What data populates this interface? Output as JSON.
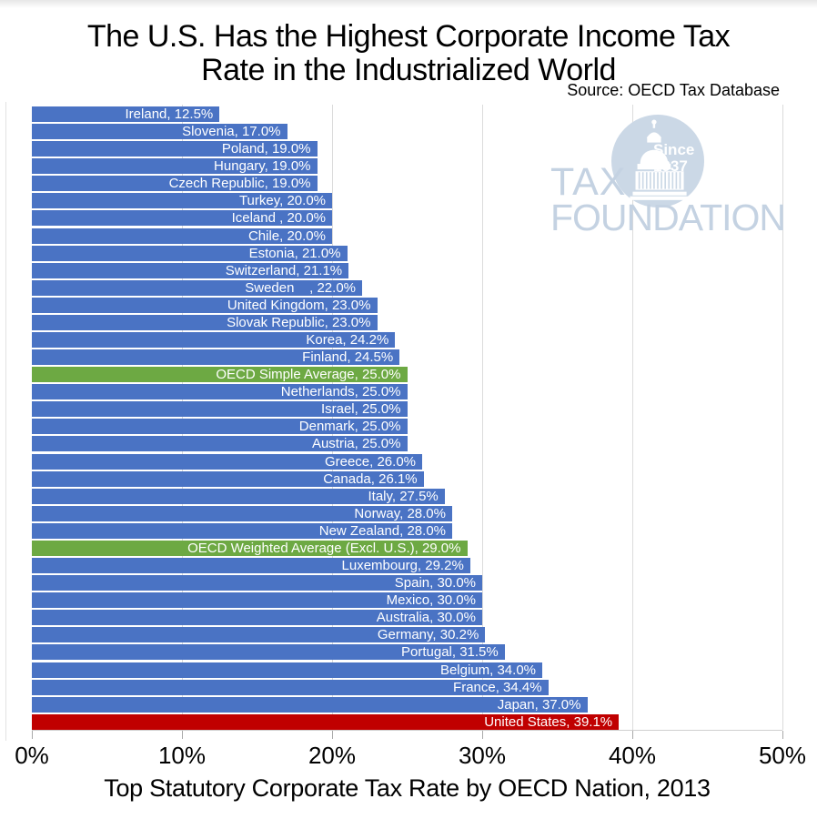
{
  "title": {
    "line1": "The U.S. Has the Highest Corporate Income Tax",
    "line2": "Rate in the Industrialized World"
  },
  "source": "Source: OECD Tax Database",
  "logo": {
    "tax": "TAX",
    "foundation": "FOUNDATION",
    "since": "Since",
    "year": "1937"
  },
  "colors": {
    "default": "#4A73C4",
    "average": "#6DA943",
    "us": "#C00000",
    "gridline": "#DBDBDB",
    "watermark_circle": "#CBD8E6",
    "watermark_text": "#C4D2E2"
  },
  "chart_data": {
    "type": "bar",
    "orientation": "horizontal",
    "title": "The U.S. Has the Highest Corporate Income Tax Rate in the Industrialized World",
    "xlabel": "Top Statutory Corporate Tax Rate by OECD Nation, 2013",
    "xlim": [
      0,
      50
    ],
    "x_ticks": [
      "0%",
      "10%",
      "20%",
      "30%",
      "40%",
      "50%"
    ],
    "grid": "vertical",
    "legend": "none",
    "items": [
      {
        "name": "Ireland",
        "value": 12.5,
        "kind": "default",
        "label": "Ireland, 12.5%"
      },
      {
        "name": "Slovenia",
        "value": 17.0,
        "kind": "default",
        "label": "Slovenia, 17.0%"
      },
      {
        "name": "Poland",
        "value": 19.0,
        "kind": "default",
        "label": "Poland, 19.0%"
      },
      {
        "name": "Hungary",
        "value": 19.0,
        "kind": "default",
        "label": "Hungary, 19.0%"
      },
      {
        "name": "Czech Republic",
        "value": 19.0,
        "kind": "default",
        "label": "Czech Republic, 19.0%"
      },
      {
        "name": "Turkey",
        "value": 20.0,
        "kind": "default",
        "label": "Turkey, 20.0%"
      },
      {
        "name": "Iceland",
        "value": 20.0,
        "kind": "default",
        "label": "Iceland , 20.0%"
      },
      {
        "name": "Chile",
        "value": 20.0,
        "kind": "default",
        "label": "Chile, 20.0%"
      },
      {
        "name": "Estonia",
        "value": 21.0,
        "kind": "default",
        "label": "Estonia, 21.0%"
      },
      {
        "name": "Switzerland",
        "value": 21.1,
        "kind": "default",
        "label": "Switzerland, 21.1%"
      },
      {
        "name": "Sweden",
        "value": 22.0,
        "kind": "default",
        "label": "Sweden    , 22.0%"
      },
      {
        "name": "United Kingdom",
        "value": 23.0,
        "kind": "default",
        "label": "United Kingdom, 23.0%"
      },
      {
        "name": "Slovak Republic",
        "value": 23.0,
        "kind": "default",
        "label": "Slovak Republic, 23.0%"
      },
      {
        "name": "Korea",
        "value": 24.2,
        "kind": "default",
        "label": "Korea, 24.2%"
      },
      {
        "name": "Finland",
        "value": 24.5,
        "kind": "default",
        "label": "Finland, 24.5%"
      },
      {
        "name": "OECD Simple Average",
        "value": 25.0,
        "kind": "average",
        "label": "OECD Simple Average, 25.0%"
      },
      {
        "name": "Netherlands",
        "value": 25.0,
        "kind": "default",
        "label": "Netherlands, 25.0%"
      },
      {
        "name": "Israel",
        "value": 25.0,
        "kind": "default",
        "label": "Israel, 25.0%"
      },
      {
        "name": "Denmark",
        "value": 25.0,
        "kind": "default",
        "label": "Denmark, 25.0%"
      },
      {
        "name": "Austria",
        "value": 25.0,
        "kind": "default",
        "label": "Austria, 25.0%"
      },
      {
        "name": "Greece",
        "value": 26.0,
        "kind": "default",
        "label": "Greece, 26.0%"
      },
      {
        "name": "Canada",
        "value": 26.1,
        "kind": "default",
        "label": "Canada, 26.1%"
      },
      {
        "name": "Italy",
        "value": 27.5,
        "kind": "default",
        "label": "Italy, 27.5%"
      },
      {
        "name": "Norway",
        "value": 28.0,
        "kind": "default",
        "label": "Norway, 28.0%"
      },
      {
        "name": "New Zealand",
        "value": 28.0,
        "kind": "default",
        "label": "New Zealand, 28.0%"
      },
      {
        "name": "OECD Weighted Average (Excl. U.S.)",
        "value": 29.0,
        "kind": "average",
        "label": "OECD Weighted Average (Excl. U.S.), 29.0%"
      },
      {
        "name": "Luxembourg",
        "value": 29.2,
        "kind": "default",
        "label": "Luxembourg, 29.2%"
      },
      {
        "name": "Spain",
        "value": 30.0,
        "kind": "default",
        "label": "Spain, 30.0%"
      },
      {
        "name": "Mexico",
        "value": 30.0,
        "kind": "default",
        "label": "Mexico, 30.0%"
      },
      {
        "name": "Australia",
        "value": 30.0,
        "kind": "default",
        "label": "Australia, 30.0%"
      },
      {
        "name": "Germany",
        "value": 30.2,
        "kind": "default",
        "label": "Germany, 30.2%"
      },
      {
        "name": "Portugal",
        "value": 31.5,
        "kind": "default",
        "label": "Portugal, 31.5%"
      },
      {
        "name": "Belgium",
        "value": 34.0,
        "kind": "default",
        "label": "Belgium, 34.0%"
      },
      {
        "name": "France",
        "value": 34.4,
        "kind": "default",
        "label": "France, 34.4%"
      },
      {
        "name": "Japan",
        "value": 37.0,
        "kind": "default",
        "label": "Japan, 37.0%"
      },
      {
        "name": "United States",
        "value": 39.1,
        "kind": "us",
        "label": "United States, 39.1%"
      }
    ]
  }
}
